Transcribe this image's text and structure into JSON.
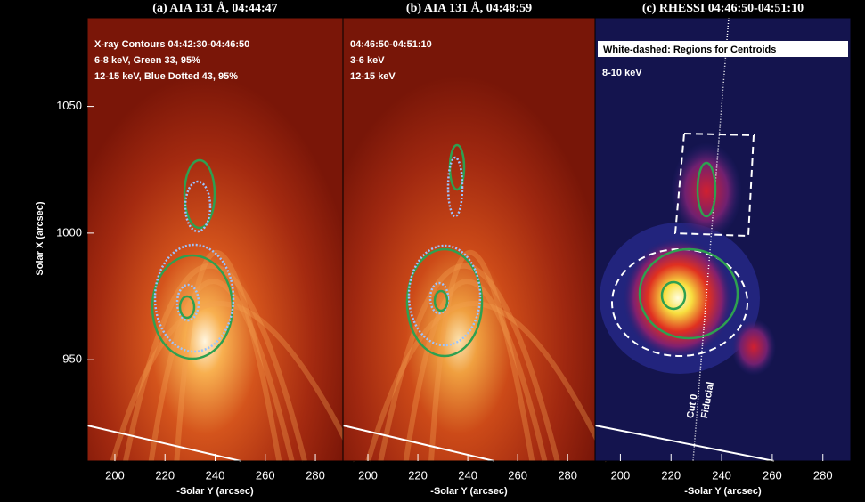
{
  "chart_data": [
    {
      "type": "image",
      "title": "(a) AIA 131 Å, 04:44:47",
      "annotations": [
        "X-ray Contours 04:42:30-04:46:50",
        "6-8 keV, Green 33, 95%",
        "12-15 keV, Blue Dotted 43, 95%"
      ],
      "xlabel": "-Solar Y (arcsec)",
      "ylabel": "Solar X (arcsec)",
      "xlim": [
        189,
        291
      ],
      "xticks": [
        200,
        220,
        240,
        260,
        280
      ],
      "ylim": [
        910,
        1085
      ],
      "yticks": [
        950,
        1000,
        1050
      ]
    },
    {
      "type": "image",
      "title": "(b) AIA 131 Å, 04:48:59",
      "annotations": [
        "04:46:50-04:51:10",
        "3-6 keV",
        "12-15 keV"
      ],
      "xlabel": "-Solar Y (arcsec)",
      "xlim": [
        190,
        291
      ],
      "xticks": [
        200,
        220,
        240,
        260,
        280
      ],
      "ylim": [
        910,
        1085
      ]
    },
    {
      "type": "image",
      "title": "(c) RHESSI 04:46:50-04:51:10",
      "annotations": [
        "White-dashed: Regions for Centroids",
        "8-10 keV",
        "Cut 0",
        "Fiducial"
      ],
      "xlabel": "-Solar Y (arcsec)",
      "xlim": [
        190,
        291
      ],
      "xticks": [
        200,
        220,
        240,
        260,
        280
      ],
      "ylim": [
        910,
        1085
      ]
    }
  ]
}
